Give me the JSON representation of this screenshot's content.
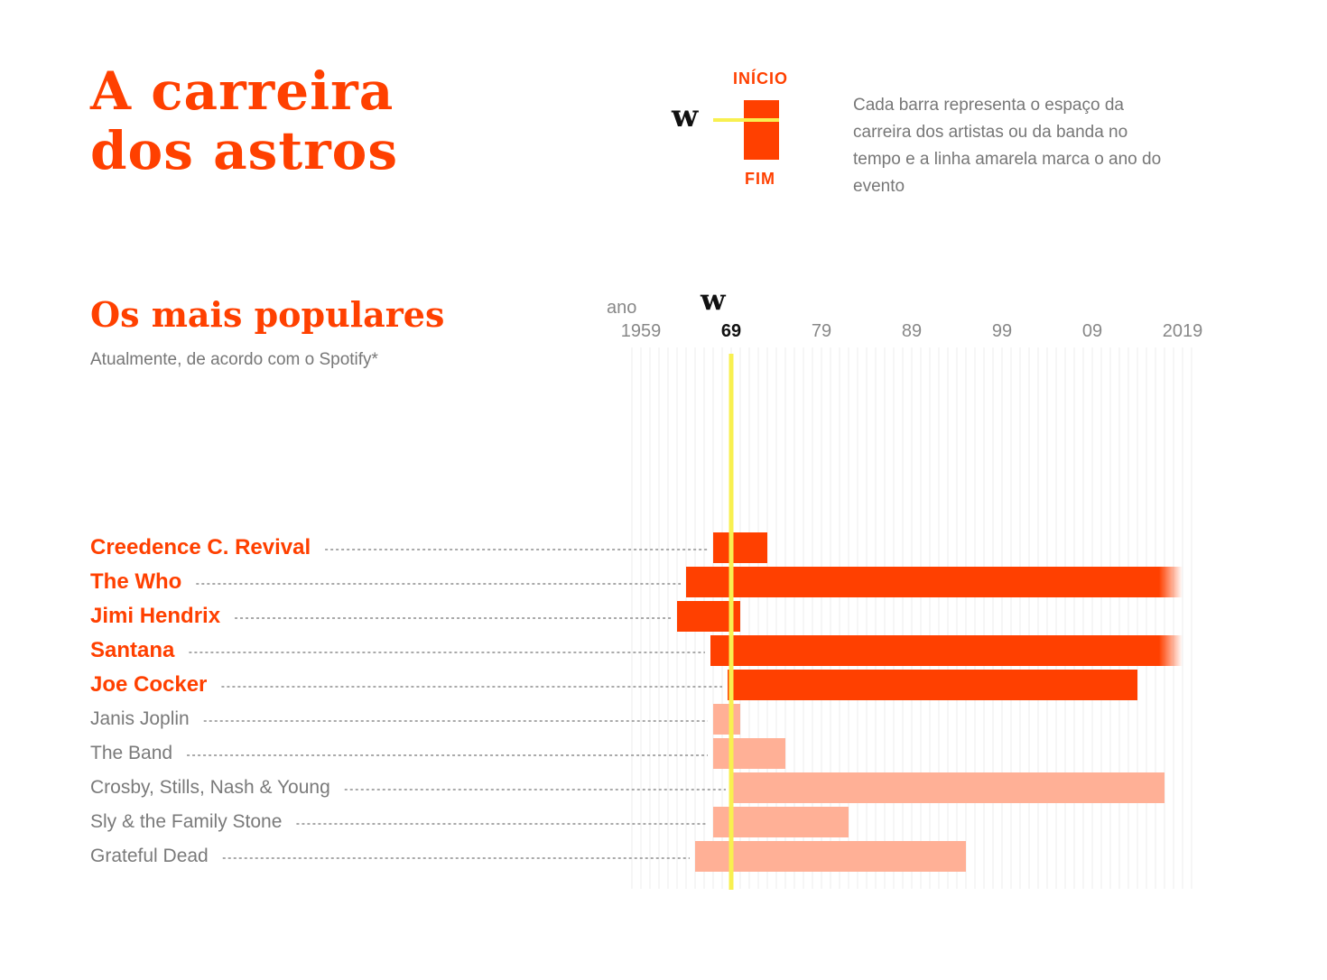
{
  "header": {
    "title_line1": "A carreira",
    "title_line2": "dos astros"
  },
  "legend": {
    "start_label": "INÍCIO",
    "end_label": "FIM",
    "event_mark": "w",
    "description": "Cada barra representa o espaço da carreira dos artistas ou da banda no tempo e a linha amarela marca o ano do evento"
  },
  "section": {
    "title": "Os mais populares",
    "subtitle": "Atualmente, de acordo com o Spotify*"
  },
  "axis": {
    "unit_label": "ano",
    "event_mark": "w"
  },
  "colors": {
    "accent": "#ff4000",
    "accent_light": "#ffb096",
    "event_line": "#f8f050",
    "grid": "#eeeeee",
    "leader": "#aaaaaa"
  },
  "chart_data": {
    "type": "bar",
    "orientation": "horizontal-range",
    "xlim": [
      1957,
      2021
    ],
    "tick_labels": [
      {
        "value": 1959,
        "label": "1959"
      },
      {
        "value": 1969,
        "label": "69"
      },
      {
        "value": 1979,
        "label": "79"
      },
      {
        "value": 1989,
        "label": "89"
      },
      {
        "value": 1999,
        "label": "99"
      },
      {
        "value": 2009,
        "label": "09"
      },
      {
        "value": 2019,
        "label": "2019"
      }
    ],
    "event_year": 1969,
    "grid": true,
    "series": [
      {
        "category": "Creedence C. Revival",
        "start": 1967,
        "end": 1973,
        "highlight": true,
        "ongoing": false
      },
      {
        "category": "The Who",
        "start": 1964,
        "end": 2019,
        "highlight": true,
        "ongoing": true
      },
      {
        "category": "Jimi Hendrix",
        "start": 1963,
        "end": 1970,
        "highlight": true,
        "ongoing": false
      },
      {
        "category": "Santana",
        "start": 1966.7,
        "end": 2019,
        "highlight": true,
        "ongoing": true
      },
      {
        "category": "Joe Cocker",
        "start": 1968.6,
        "end": 2014,
        "highlight": true,
        "ongoing": false
      },
      {
        "category": "Janis Joplin",
        "start": 1967,
        "end": 1970,
        "highlight": false,
        "ongoing": false
      },
      {
        "category": "The Band",
        "start": 1967,
        "end": 1975,
        "highlight": false,
        "ongoing": false
      },
      {
        "category": "Crosby, Stills, Nash & Young",
        "start": 1969,
        "end": 2017,
        "highlight": false,
        "ongoing": false
      },
      {
        "category": "Sly & the Family Stone",
        "start": 1967,
        "end": 1982,
        "highlight": false,
        "ongoing": false
      },
      {
        "category": "Grateful Dead",
        "start": 1965,
        "end": 1995,
        "highlight": false,
        "ongoing": false
      }
    ]
  }
}
